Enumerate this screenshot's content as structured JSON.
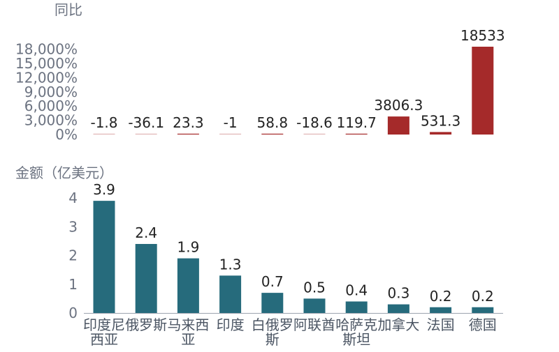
{
  "chart_data": [
    {
      "type": "bar",
      "title": "同比",
      "categories": [
        "印度尼西亚",
        "俄罗斯",
        "马来西亚",
        "印度",
        "白俄罗斯",
        "阿联酋",
        "哈萨克斯坦",
        "加拿大",
        "法国",
        "德国"
      ],
      "values": [
        -1.8,
        -36.1,
        23.3,
        -1,
        58.8,
        -18.6,
        119.7,
        3806.3,
        531.3,
        18533
      ],
      "value_labels": [
        "-1.8",
        "-36.1",
        "23.3",
        "-1",
        "58.8",
        "-18.6",
        "119.7",
        "3806.3",
        "531.3",
        "18533"
      ],
      "yticks": [
        0,
        3000,
        6000,
        9000,
        12000,
        15000,
        18000
      ],
      "ytick_labels": [
        "0%",
        "3,000%",
        "6,000%",
        "9,000%",
        "12,000%",
        "15,000%",
        "18,000%"
      ],
      "ylim": [
        0,
        18533
      ],
      "color": "#a52a2a",
      "grid": false,
      "legend": "none"
    },
    {
      "type": "bar",
      "title": "金额（亿美元）",
      "categories": [
        "印度尼西亚",
        "俄罗斯",
        "马来西亚",
        "印度",
        "白俄罗斯",
        "阿联酋",
        "哈萨克斯坦",
        "加拿大",
        "法国",
        "德国"
      ],
      "category_lines": [
        [
          "印度尼",
          "西亚"
        ],
        [
          "俄罗斯"
        ],
        [
          "马来西",
          "亚"
        ],
        [
          "印度"
        ],
        [
          "白俄罗",
          "斯"
        ],
        [
          "阿联酋"
        ],
        [
          "哈萨克",
          "斯坦"
        ],
        [
          "加拿大"
        ],
        [
          "法国"
        ],
        [
          "德国"
        ]
      ],
      "values": [
        3.9,
        2.4,
        1.9,
        1.3,
        0.7,
        0.5,
        0.4,
        0.3,
        0.2,
        0.2
      ],
      "value_labels": [
        "3.9",
        "2.4",
        "1.9",
        "1.3",
        "0.7",
        "0.5",
        "0.4",
        "0.3",
        "0.2",
        "0.2"
      ],
      "yticks": [
        0,
        1,
        2,
        3,
        4
      ],
      "ytick_labels": [
        "0",
        "1",
        "2",
        "3",
        "4"
      ],
      "ylim": [
        0,
        4
      ],
      "color": "#266b7c",
      "grid": false,
      "legend": "none"
    }
  ]
}
